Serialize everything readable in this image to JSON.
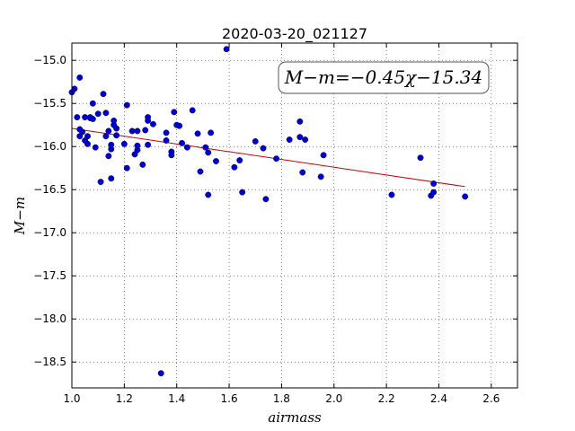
{
  "chart_data": {
    "type": "scatter",
    "title": "2020-03-20_021127",
    "xlabel": "airmass",
    "ylabel": "M−m",
    "xlim": [
      1.0,
      2.7
    ],
    "ylim": [
      -18.8,
      -14.8
    ],
    "y_inverted": true,
    "grid": true,
    "x_ticks": [
      1.0,
      1.2,
      1.4,
      1.6,
      1.8,
      2.0,
      2.2,
      2.4,
      2.6
    ],
    "x_tick_labels": [
      "1.0",
      "1.2",
      "1.4",
      "1.6",
      "1.8",
      "2.0",
      "2.2",
      "2.4",
      "2.6"
    ],
    "y_ticks": [
      -15.0,
      -15.5,
      -16.0,
      -16.5,
      -17.0,
      -17.5,
      -18.0,
      -18.5
    ],
    "y_tick_labels": [
      "−15.0",
      "−15.5",
      "−16.0",
      "−16.5",
      "−17.0",
      "−17.5",
      "−18.0",
      "−18.5"
    ],
    "annotation": "M−m=−0.45χ−15.34",
    "annotation_position": "top-right",
    "point_color": "#0000cc",
    "fit_color": "#cc0000",
    "fit": {
      "slope": -0.45,
      "intercept": -15.34,
      "x_range": [
        1.0,
        2.5
      ]
    },
    "points": [
      [
        1.0,
        -15.37
      ],
      [
        1.01,
        -15.33
      ],
      [
        1.02,
        -15.66
      ],
      [
        1.03,
        -15.2
      ],
      [
        1.03,
        -15.88
      ],
      [
        1.03,
        -15.8
      ],
      [
        1.04,
        -15.83
      ],
      [
        1.05,
        -15.66
      ],
      [
        1.05,
        -15.93
      ],
      [
        1.06,
        -15.97
      ],
      [
        1.06,
        -15.88
      ],
      [
        1.07,
        -15.67
      ],
      [
        1.07,
        -15.66
      ],
      [
        1.08,
        -15.68
      ],
      [
        1.08,
        -15.5
      ],
      [
        1.09,
        -16.01
      ],
      [
        1.1,
        -15.62
      ],
      [
        1.11,
        -16.41
      ],
      [
        1.12,
        -15.39
      ],
      [
        1.13,
        -15.88
      ],
      [
        1.13,
        -15.61
      ],
      [
        1.14,
        -16.11
      ],
      [
        1.14,
        -15.82
      ],
      [
        1.15,
        -16.03
      ],
      [
        1.15,
        -15.98
      ],
      [
        1.15,
        -16.37
      ],
      [
        1.16,
        -15.75
      ],
      [
        1.16,
        -15.7
      ],
      [
        1.17,
        -15.87
      ],
      [
        1.17,
        -15.79
      ],
      [
        1.2,
        -15.97
      ],
      [
        1.21,
        -16.25
      ],
      [
        1.21,
        -15.52
      ],
      [
        1.23,
        -15.82
      ],
      [
        1.24,
        -16.09
      ],
      [
        1.25,
        -15.99
      ],
      [
        1.25,
        -15.82
      ],
      [
        1.25,
        -16.04
      ],
      [
        1.27,
        -16.21
      ],
      [
        1.28,
        -15.81
      ],
      [
        1.29,
        -15.66
      ],
      [
        1.29,
        -15.7
      ],
      [
        1.29,
        -15.98
      ],
      [
        1.31,
        -15.74
      ],
      [
        1.34,
        -18.63
      ],
      [
        1.36,
        -15.84
      ],
      [
        1.36,
        -15.93
      ],
      [
        1.38,
        -16.06
      ],
      [
        1.38,
        -16.1
      ],
      [
        1.39,
        -15.6
      ],
      [
        1.4,
        -15.75
      ],
      [
        1.41,
        -15.76
      ],
      [
        1.42,
        -15.96
      ],
      [
        1.44,
        -16.01
      ],
      [
        1.46,
        -15.58
      ],
      [
        1.48,
        -15.85
      ],
      [
        1.49,
        -16.29
      ],
      [
        1.51,
        -16.01
      ],
      [
        1.52,
        -16.56
      ],
      [
        1.52,
        -16.07
      ],
      [
        1.53,
        -15.84
      ],
      [
        1.55,
        -16.17
      ],
      [
        1.59,
        -14.87
      ],
      [
        1.62,
        -16.24
      ],
      [
        1.64,
        -16.16
      ],
      [
        1.65,
        -16.53
      ],
      [
        1.7,
        -15.94
      ],
      [
        1.73,
        -16.02
      ],
      [
        1.74,
        -16.61
      ],
      [
        1.78,
        -16.14
      ],
      [
        1.83,
        -15.92
      ],
      [
        1.87,
        -15.71
      ],
      [
        1.87,
        -15.89
      ],
      [
        1.88,
        -16.3
      ],
      [
        1.89,
        -15.92
      ],
      [
        1.95,
        -16.35
      ],
      [
        1.96,
        -16.1
      ],
      [
        2.22,
        -16.56
      ],
      [
        2.33,
        -16.13
      ],
      [
        2.37,
        -16.57
      ],
      [
        2.38,
        -16.43
      ],
      [
        2.38,
        -16.53
      ],
      [
        2.5,
        -16.58
      ]
    ]
  }
}
